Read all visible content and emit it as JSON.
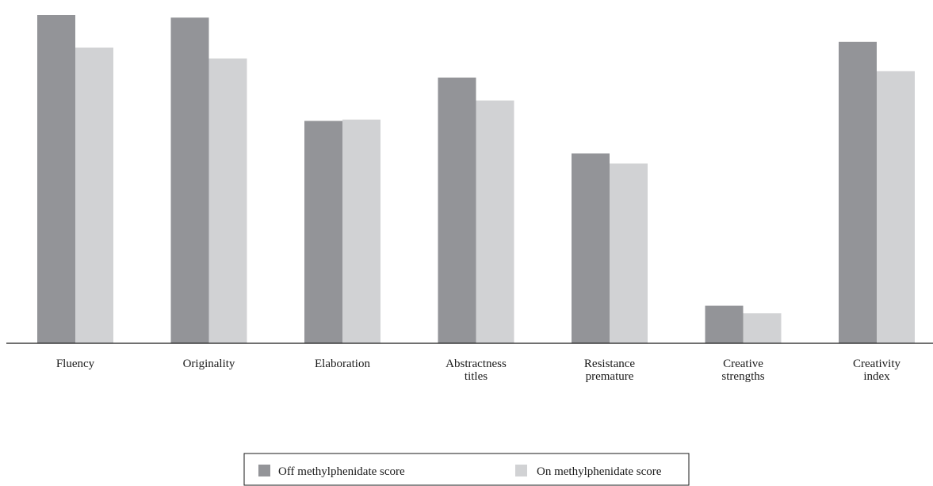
{
  "chart_data": {
    "type": "bar",
    "title": "",
    "xlabel": "",
    "ylabel": "",
    "categories": [
      [
        "Fluency"
      ],
      [
        "Originality"
      ],
      [
        "Elaboration"
      ],
      [
        "Abstractness",
        "titles"
      ],
      [
        "Resistance",
        "premature"
      ],
      [
        "Creative",
        "strengths"
      ],
      [
        "Creativity",
        "index"
      ]
    ],
    "series": [
      {
        "name": "Off methylphenidate score",
        "color": "#939498",
        "values": [
          103,
          102.2,
          69.8,
          83.4,
          59.6,
          11.8,
          94.6
        ]
      },
      {
        "name": "On methylphenidate score",
        "color": "#d1d2d4",
        "values": [
          92.8,
          89.4,
          70.2,
          76.2,
          56.4,
          9.4,
          85.4
        ]
      }
    ],
    "ylim": [
      0,
      104
    ],
    "grid": false,
    "y_axis_shown": false,
    "legend_position": "bottom-center"
  }
}
